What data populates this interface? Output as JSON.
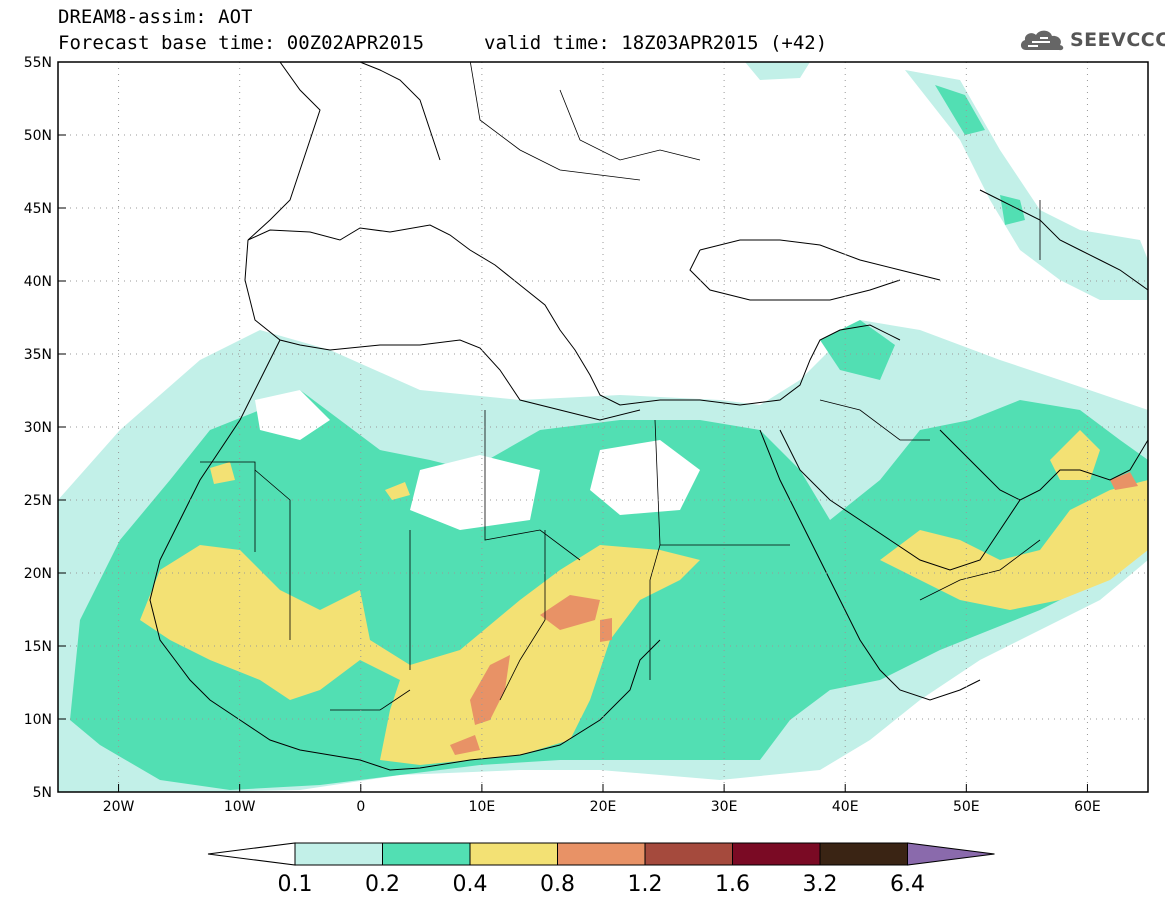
{
  "header": {
    "line1": "DREAM8-assim: AOT",
    "line2": "Forecast base time: 00Z02APR2015",
    "valid": "valid time: 18Z03APR2015 (+42)",
    "logo_text": "SEEVCCC",
    "logo_icon": "cloud-icon"
  },
  "map": {
    "lon_range": [
      -25,
      65
    ],
    "lat_range": [
      5,
      55
    ],
    "lon_ticks": [
      "20W",
      "10W",
      "0",
      "10E",
      "20E",
      "30E",
      "40E",
      "50E",
      "60E"
    ],
    "lat_ticks": [
      "5N",
      "10N",
      "15N",
      "20N",
      "25N",
      "30N",
      "35N",
      "40N",
      "45N",
      "50N",
      "55N"
    ],
    "grid": "dotted"
  },
  "colorbar": {
    "levels": [
      "0.1",
      "0.2",
      "0.4",
      "0.8",
      "1.2",
      "1.6",
      "3.2",
      "6.4"
    ],
    "colors": [
      "#ffffff",
      "#c2f0e8",
      "#52dfb3",
      "#f3e174",
      "#e89266",
      "#a54a3d",
      "#7a0a24",
      "#3a2414",
      "#8a6aac"
    ]
  }
}
